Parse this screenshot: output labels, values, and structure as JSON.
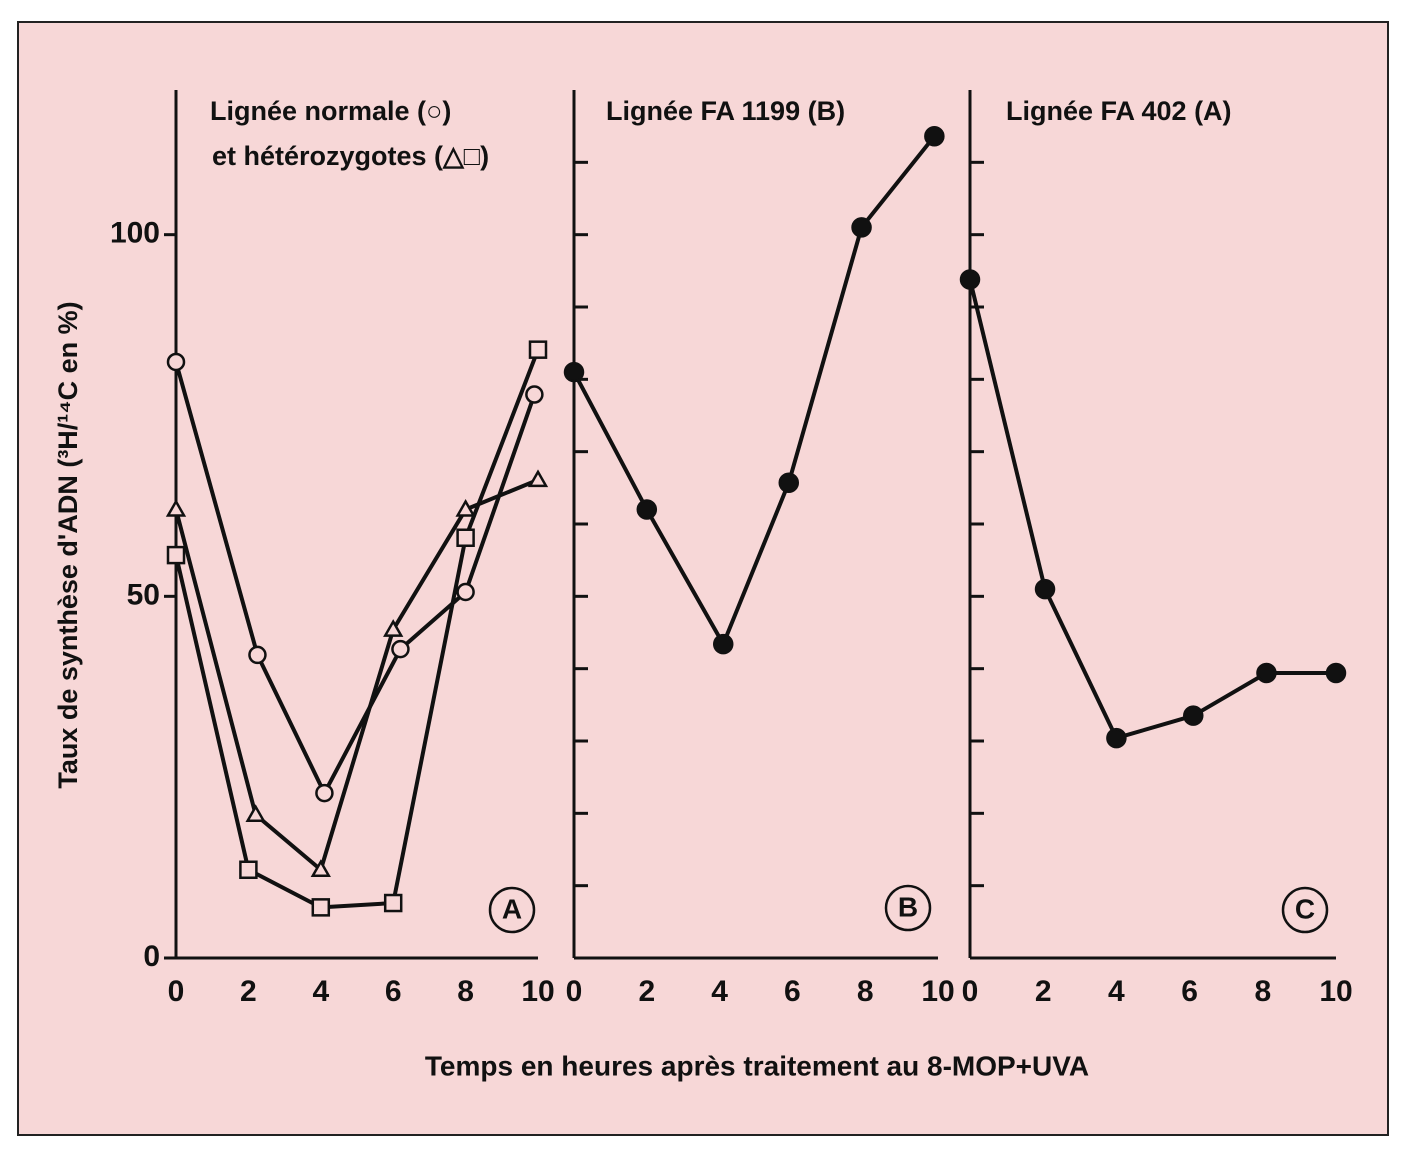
{
  "ylabel": "Taux de synthèse d'ADN (³H/¹⁴C en %)",
  "xlabel": "Temps en heures après traitement au 8-MOP+UVA",
  "chart_data": [
    {
      "type": "line",
      "title_lines": [
        "Lignée normale (○)",
        "et hétérozygotes (△□)"
      ],
      "panel_label": "A",
      "xlim": [
        0,
        10
      ],
      "xticks": [
        0,
        2,
        4,
        6,
        8,
        10
      ],
      "ylim": [
        0,
        120
      ],
      "yticks": [
        0,
        50,
        100
      ],
      "tick_labels": true,
      "series": [
        {
          "marker": "circle-open",
          "color": "#111111",
          "x": [
            0,
            2.25,
            4.1,
            6.2,
            8,
            9.9
          ],
          "values": [
            82.4,
            41.9,
            22.8,
            42.7,
            50.6,
            77.9
          ]
        },
        {
          "marker": "triangle-open",
          "color": "#111111",
          "x": [
            0,
            2.2,
            4,
            6,
            8,
            10
          ],
          "values": [
            62,
            19.8,
            12.2,
            45.4,
            62,
            66.1
          ]
        },
        {
          "marker": "square-open",
          "color": "#111111",
          "x": [
            0,
            2,
            4,
            6,
            8,
            10
          ],
          "values": [
            55.7,
            12.2,
            7,
            7.6,
            58.1,
            84.1
          ]
        }
      ]
    },
    {
      "type": "line",
      "title_lines": [
        "Lignée FA 1199 (B)"
      ],
      "panel_label": "B",
      "xlim": [
        0,
        10
      ],
      "xticks": [
        0,
        2,
        4,
        6,
        8,
        10
      ],
      "ylim": [
        0,
        120
      ],
      "yticks": [
        0,
        10,
        20,
        30,
        40,
        50,
        60,
        70,
        80,
        90,
        100,
        110
      ],
      "tick_labels": false,
      "series": [
        {
          "marker": "circle-filled",
          "color": "#111111",
          "x": [
            0,
            2,
            4.1,
            5.9,
            7.9,
            9.9
          ],
          "values": [
            81,
            62,
            43.4,
            65.7,
            101,
            113.6
          ]
        }
      ]
    },
    {
      "type": "line",
      "title_lines": [
        "Lignée FA 402 (A)"
      ],
      "panel_label": "C",
      "xlim": [
        0,
        10
      ],
      "xticks": [
        0,
        2,
        4,
        6,
        8,
        10
      ],
      "ylim": [
        0,
        120
      ],
      "yticks": [
        0,
        10,
        20,
        30,
        40,
        50,
        60,
        70,
        80,
        90,
        100,
        110
      ],
      "tick_labels": false,
      "series": [
        {
          "marker": "circle-filled",
          "color": "#111111",
          "x": [
            0,
            2.05,
            4,
            6.1,
            8.1,
            10
          ],
          "values": [
            93.8,
            51,
            30.4,
            33.5,
            39.4,
            39.4
          ]
        }
      ]
    }
  ]
}
